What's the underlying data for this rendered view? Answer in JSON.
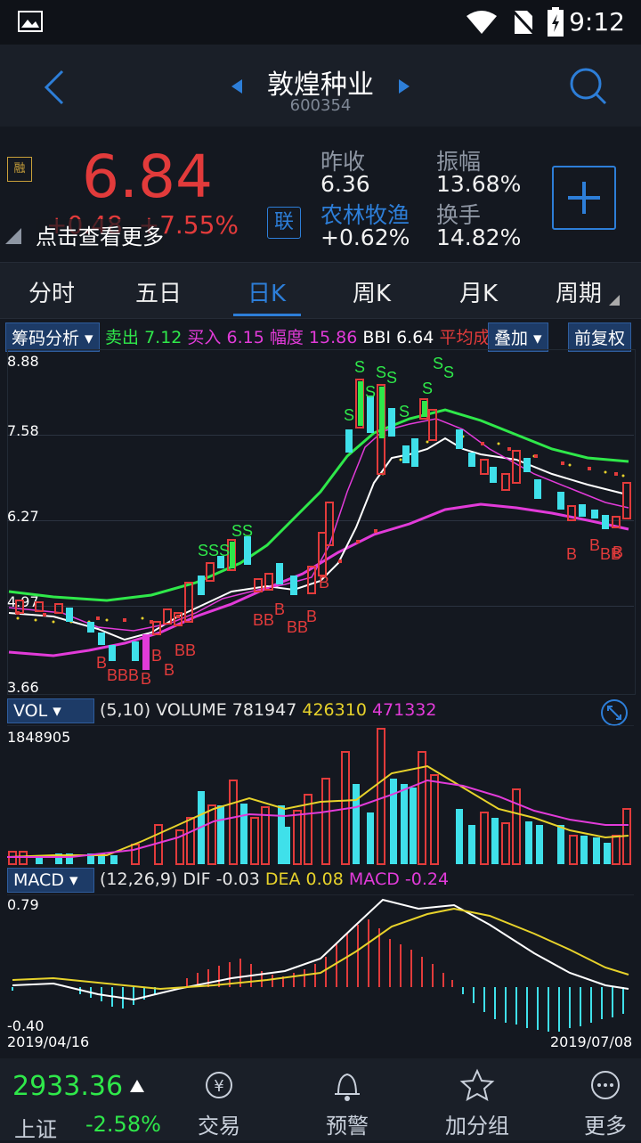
{
  "status": {
    "time": "9:12"
  },
  "header": {
    "title": "敦煌种业",
    "code": "600354"
  },
  "quote": {
    "price": "6.84",
    "change": "+0.48",
    "change_pct": "+7.55%",
    "hint": "点击查看更多",
    "badge": "联",
    "prev_close_label": "昨收",
    "prev_close": "6.36",
    "amplitude_label": "振幅",
    "amplitude": "13.68%",
    "sector_label": "农林牧渔",
    "sector_change": "+0.62%",
    "turnover_label": "换手",
    "turnover": "14.82%"
  },
  "tabs": [
    "分时",
    "五日",
    "日K",
    "周K",
    "月K",
    "周期"
  ],
  "active_tab": "日K",
  "indicators": {
    "chip_left": "筹码分析",
    "sell_label": "卖出",
    "sell": "7.12",
    "buy_label": "买入",
    "buy": "6.15",
    "range_label": "幅度",
    "range": "15.86",
    "bbi_label": "BBI",
    "bbi": "6.64",
    "avg_label": "平均成",
    "overlay": "叠加",
    "adjust": "前复权"
  },
  "kline": {
    "yticks": [
      "8.88",
      "7.58",
      "6.27",
      "4.97",
      "3.66"
    ]
  },
  "volume": {
    "chip": "VOL",
    "params": "(5,10)",
    "label": "VOLUME",
    "value": "781947",
    "ma5": "426310",
    "ma10": "471332",
    "max": "1848905"
  },
  "macd": {
    "chip": "MACD",
    "params": "(12,26,9)",
    "dif_label": "DIF",
    "dif": "-0.03",
    "dea_label": "DEA",
    "dea": "0.08",
    "macd_label": "MACD",
    "macd": "-0.24",
    "ytop": "0.79",
    "ybottom": "-0.40",
    "date_start": "2019/04/16",
    "date_end": "2019/07/08"
  },
  "bottom": {
    "index_value": "2933.36",
    "index_name": "上证",
    "index_change": "-2.58%",
    "items": [
      "交易",
      "预警",
      "加分组",
      "更多"
    ]
  },
  "colors": {
    "up": "#e23b3b",
    "down": "#3fe0ea",
    "accent": "#2d7ed8",
    "ma_green": "#2fe84a",
    "ma_white": "#ffffff",
    "ma_magenta": "#e23bd9",
    "ma_yellow": "#e7d22b"
  }
}
